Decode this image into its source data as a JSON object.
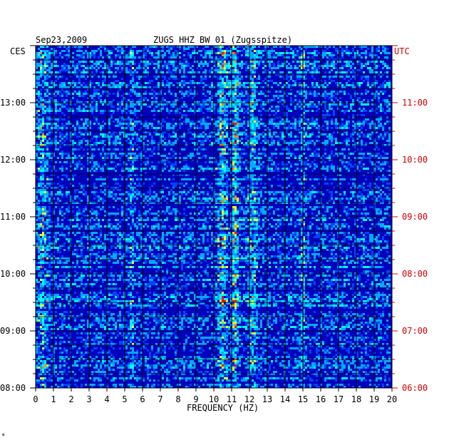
{
  "header": {
    "date": "Sep23,2009",
    "station": "ZUGS HHZ BW 01 (Zugsspitze)",
    "left_tz": "CES",
    "right_tz": "UTC"
  },
  "footer_mark": "*",
  "colors": {
    "background": "#0000bb",
    "frame": "#000000",
    "right_axis": "#cc0000"
  },
  "chart_data": {
    "type": "heatmap",
    "title": "ZUGS HHZ BW 01 (Zugsspitze)",
    "date": "Sep23,2009",
    "xlabel": "FREQUENCY (HZ)",
    "xlim": [
      0,
      20
    ],
    "x_ticks": [
      "0",
      "1",
      "2",
      "3",
      "4",
      "5",
      "6",
      "7",
      "8",
      "9",
      "10",
      "11",
      "12",
      "13",
      "14",
      "15",
      "16",
      "17",
      "18",
      "19",
      "20"
    ],
    "y_left_label": "CES",
    "y_left_ticks": [
      "13:00",
      "12:00",
      "11:00",
      "10:00",
      "09:00",
      "08:00"
    ],
    "y_right_label": "UTC",
    "y_right_ticks": [
      "11:00",
      "10:00",
      "09:00",
      "08:00",
      "07:00",
      "06:00"
    ],
    "time_range_ces": [
      "08:00",
      "14:00"
    ],
    "grid": true,
    "colormap": [
      "#0000bb",
      "#0044ff",
      "#00aaff",
      "#00ffff",
      "#ffff00",
      "#ff8800",
      "#ff0000"
    ],
    "energy_bands_hz": [
      {
        "center": 10.5,
        "width": 0.4,
        "level": 0.75
      },
      {
        "center": 11.2,
        "width": 0.3,
        "level": 0.85
      },
      {
        "center": 12.2,
        "width": 0.4,
        "level": 0.55
      },
      {
        "center": 15.0,
        "width": 0.2,
        "level": 0.5
      },
      {
        "center": 5.4,
        "width": 0.15,
        "level": 0.45
      },
      {
        "center": 0.4,
        "width": 0.5,
        "level": 0.5
      }
    ]
  }
}
